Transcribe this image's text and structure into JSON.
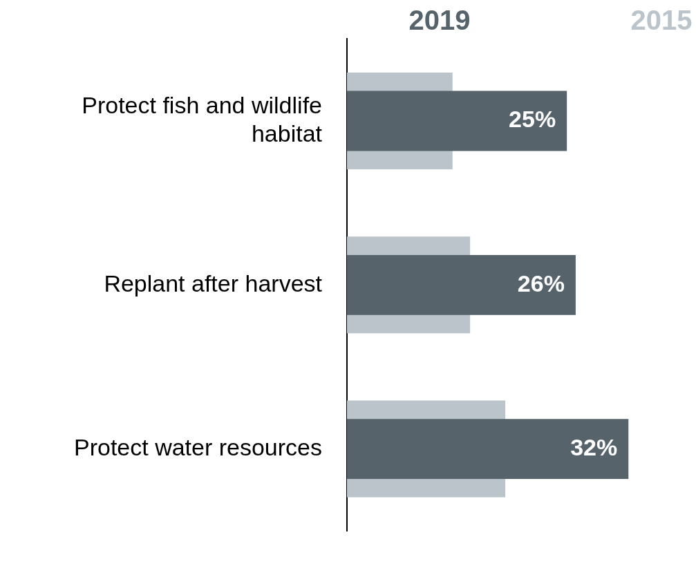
{
  "chart_data": {
    "type": "bar",
    "orientation": "horizontal",
    "categories": [
      "Protect fish and wildlife habitat",
      "Replant after harvest",
      "Protect water resources"
    ],
    "series": [
      {
        "name": "2019",
        "color": "#56636b",
        "values": [
          25,
          26,
          32
        ],
        "value_labels": [
          "25%",
          "26%",
          "32%"
        ]
      },
      {
        "name": "2015",
        "color": "#bac4ca",
        "values": [
          12,
          14,
          18
        ]
      }
    ],
    "legend": "top right",
    "grid": false
  }
}
